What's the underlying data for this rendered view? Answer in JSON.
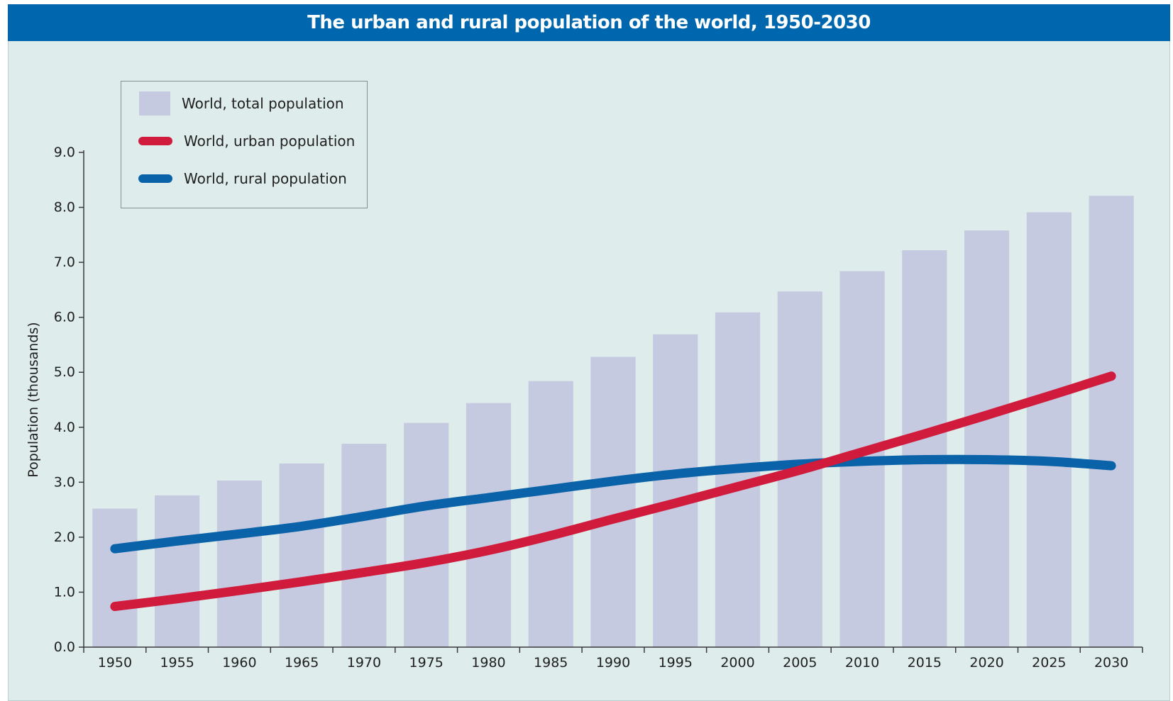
{
  "title": "The urban and rural population of the world, 1950-2030",
  "colors": {
    "header": "#0066ad",
    "background": "#deeceb",
    "total": "#c5cae0",
    "urban": "#d11b3c",
    "rural": "#0a62a8"
  },
  "chart_data": {
    "type": "bar",
    "title": "The urban and rural population of the world, 1950-2030",
    "ylabel": "Population (thousands)",
    "xlabel": "",
    "ylim": [
      0,
      9
    ],
    "yticks": [
      "0.0",
      "1.0",
      "2.0",
      "3.0",
      "4.0",
      "5.0",
      "6.0",
      "7.0",
      "8.0",
      "9.0"
    ],
    "categories": [
      "1950",
      "1955",
      "1960",
      "1965",
      "1970",
      "1975",
      "1980",
      "1985",
      "1990",
      "1995",
      "2000",
      "2005",
      "2010",
      "2015",
      "2020",
      "2025",
      "2030"
    ],
    "legend_position": "top-left",
    "grid": false,
    "series": [
      {
        "name": "World, total population",
        "kind": "bar",
        "color": "#c5cae0",
        "values": [
          2.52,
          2.76,
          3.03,
          3.34,
          3.7,
          4.08,
          4.44,
          4.84,
          5.28,
          5.69,
          6.09,
          6.47,
          6.84,
          7.22,
          7.58,
          7.91,
          8.21
        ]
      },
      {
        "name": "World, urban population",
        "kind": "line",
        "color": "#d11b3c",
        "values": [
          0.74,
          0.88,
          1.03,
          1.19,
          1.36,
          1.54,
          1.76,
          2.03,
          2.33,
          2.62,
          2.92,
          3.22,
          3.55,
          3.88,
          4.22,
          4.57,
          4.93
        ]
      },
      {
        "name": "World, rural population",
        "kind": "line",
        "color": "#0a62a8",
        "values": [
          1.79,
          1.93,
          2.06,
          2.2,
          2.38,
          2.57,
          2.72,
          2.87,
          3.02,
          3.15,
          3.25,
          3.33,
          3.38,
          3.41,
          3.41,
          3.38,
          3.3
        ]
      }
    ]
  }
}
